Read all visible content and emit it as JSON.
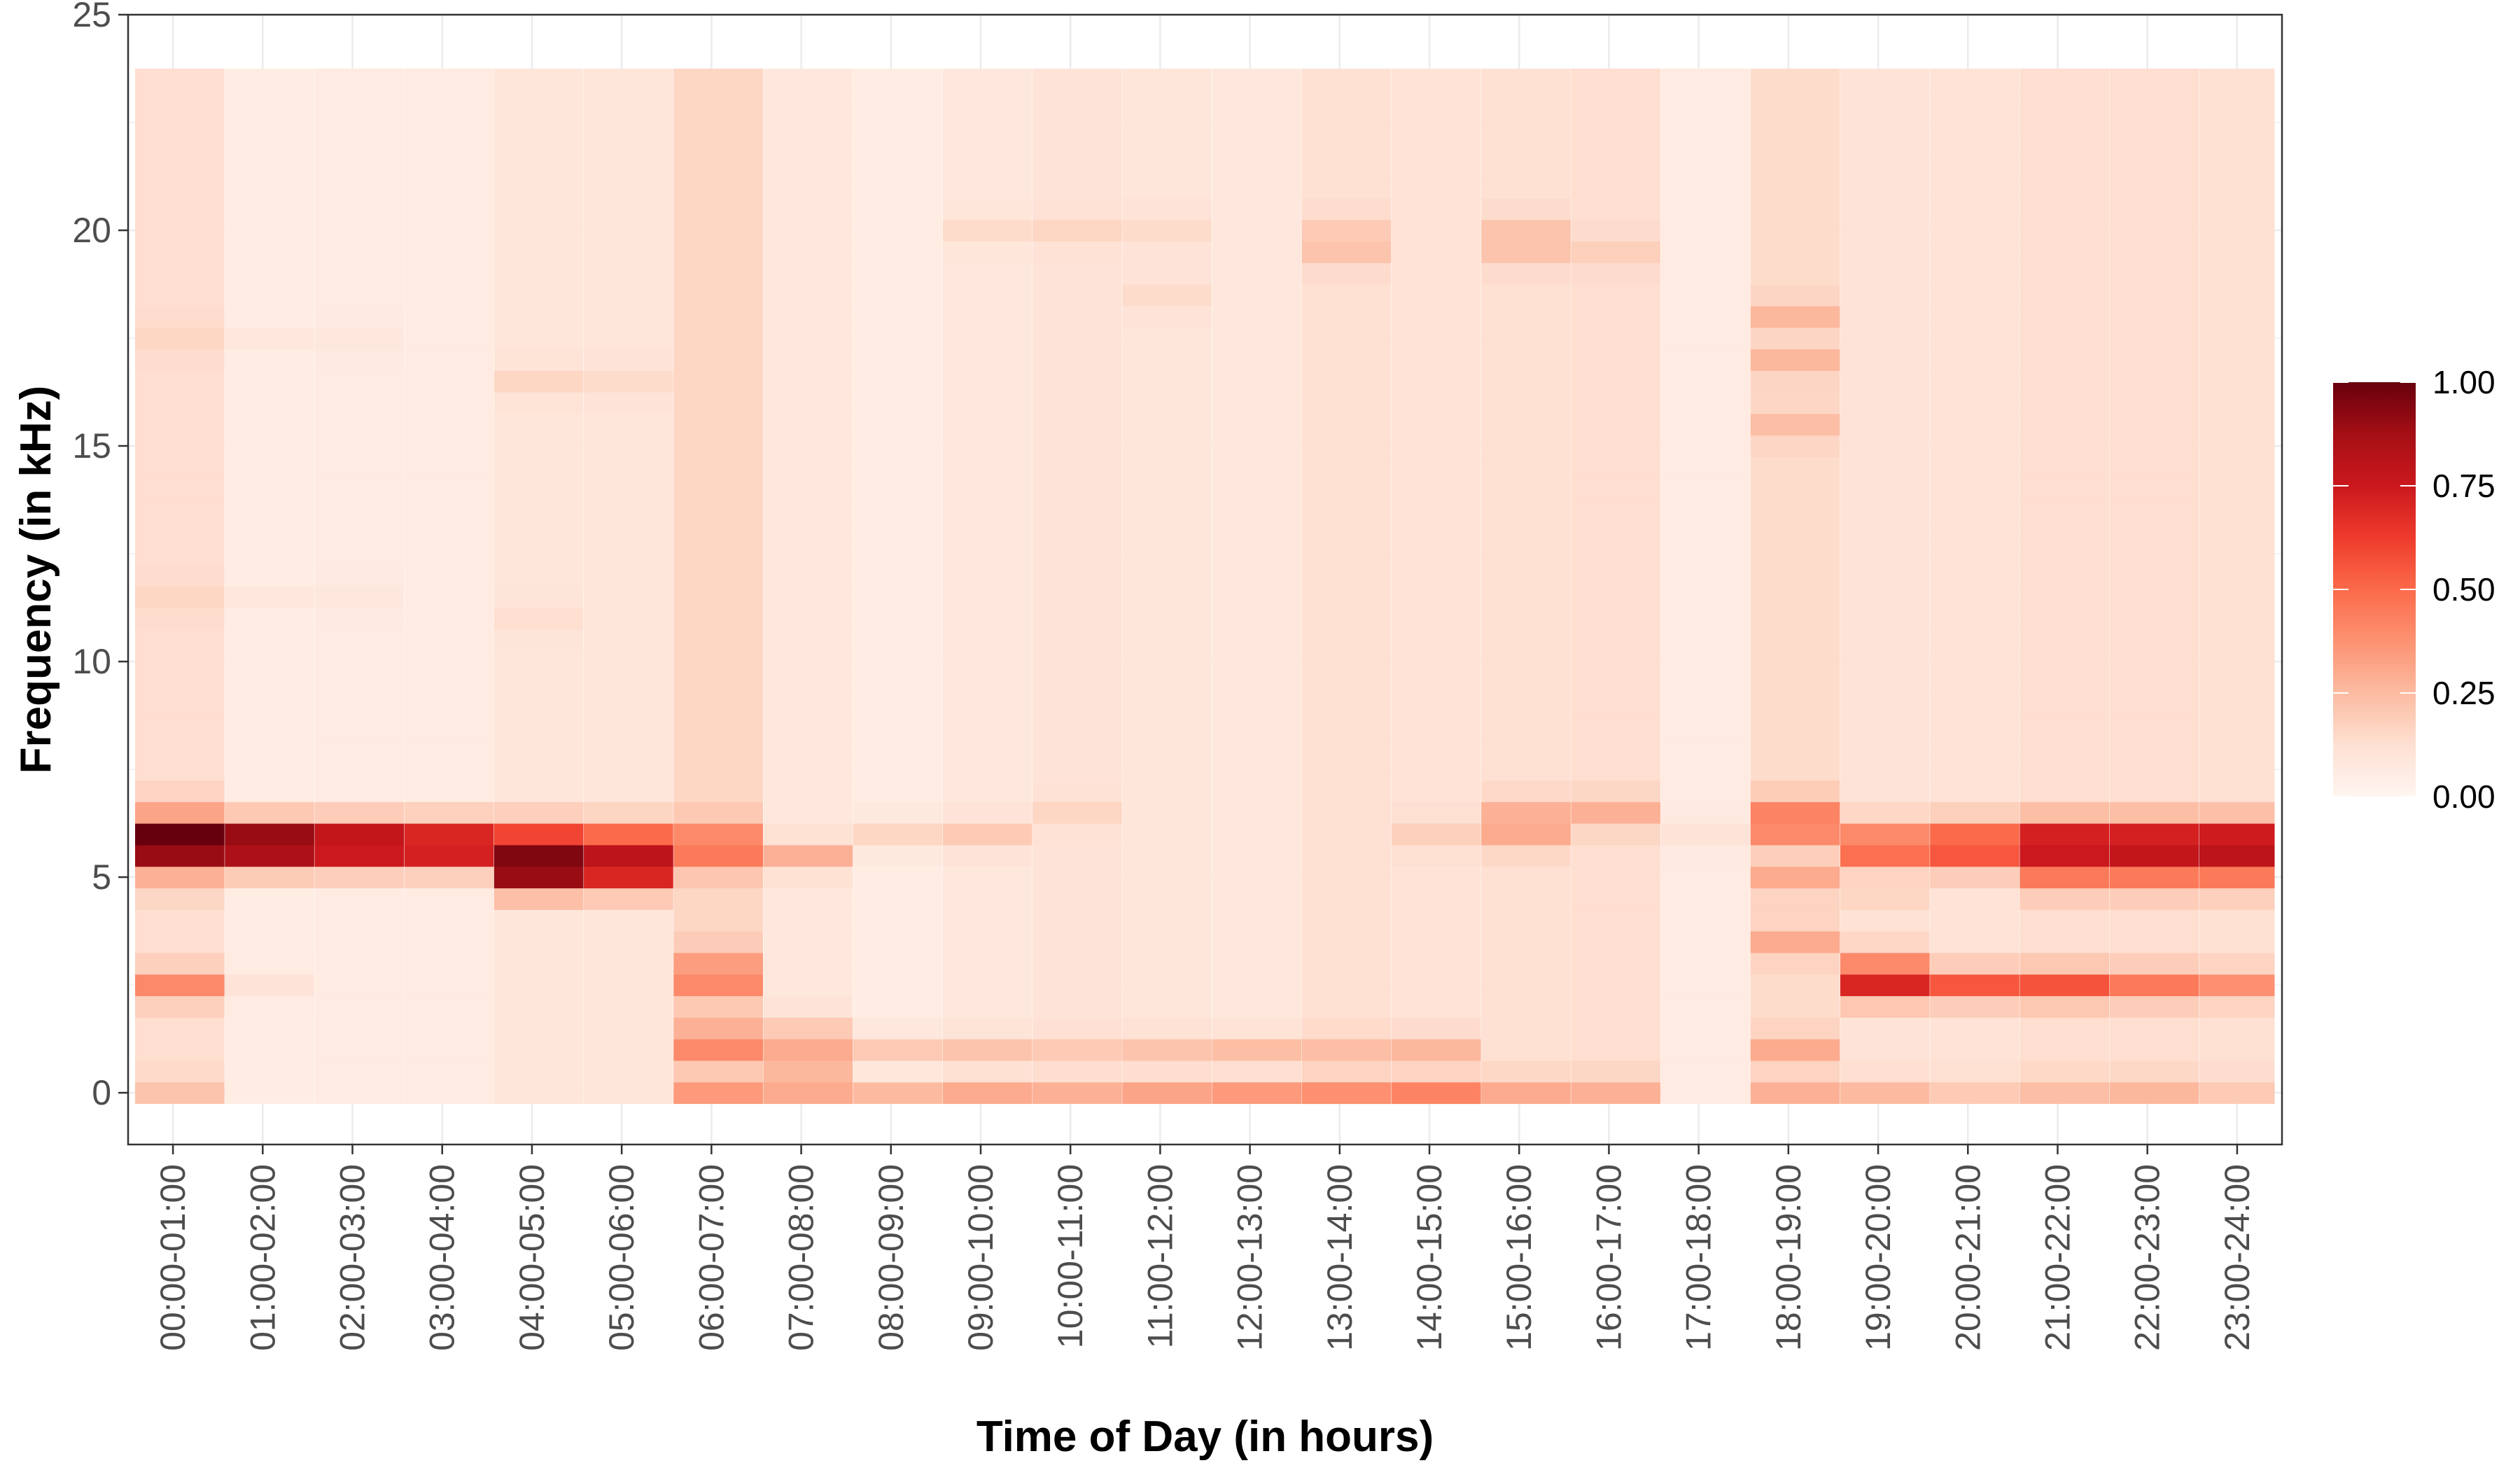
{
  "chart_data": {
    "type": "heatmap",
    "title": "",
    "xlabel": "Time of Day (in hours)",
    "ylabel": "Frequency (in kHz)",
    "x_categories": [
      "00:00-01:00",
      "01:00-02:00",
      "02:00-03:00",
      "03:00-04:00",
      "04:00-05:00",
      "05:00-06:00",
      "06:00-07:00",
      "07:00-08:00",
      "08:00-09:00",
      "09:00-10:00",
      "10:00-11:00",
      "11:00-12:00",
      "12:00-13:00",
      "13:00-14:00",
      "14:00-15:00",
      "15:00-16:00",
      "16:00-17:00",
      "17:00-18:00",
      "18:00-19:00",
      "19:00-20:00",
      "20:00-21:00",
      "21:00-22:00",
      "22:00-23:00",
      "23:00-24:00"
    ],
    "ylim": [
      -1.2,
      25
    ],
    "y_ticks": [
      0,
      5,
      10,
      15,
      20,
      25
    ],
    "y_bins": {
      "start": 0,
      "end": 24,
      "step": 0.5
    },
    "value_range": [
      0,
      1
    ],
    "legend": {
      "position": "right",
      "ticks": [
        "1.00",
        "0.75",
        "0.50",
        "0.25",
        "0.00"
      ]
    },
    "colors": [
      "#fff5f0",
      "#fee0d2",
      "#fcbba1",
      "#fc9272",
      "#fb6a4a",
      "#ef3b2c",
      "#cb181d",
      "#a50f15",
      "#67000d"
    ],
    "grid": true,
    "intensity_by_hour": [
      {
        "base": 0.13,
        "bands": [
          [
            0,
            0.22
          ],
          [
            2.5,
            0.4
          ],
          [
            5.0,
            0.28
          ],
          [
            5.5,
            0.9
          ],
          [
            6.0,
            1.0
          ],
          [
            6.5,
            0.32
          ],
          [
            11.5,
            0.16
          ],
          [
            17.5,
            0.16
          ]
        ]
      },
      {
        "base": 0.05,
        "bands": [
          [
            2.5,
            0.1
          ],
          [
            5.5,
            0.85
          ],
          [
            6.0,
            0.9
          ],
          [
            11.5,
            0.08
          ],
          [
            17.5,
            0.08
          ]
        ]
      },
      {
        "base": 0.06,
        "bands": [
          [
            5.5,
            0.75
          ],
          [
            6.0,
            0.78
          ],
          [
            11.5,
            0.08
          ],
          [
            17.5,
            0.08
          ]
        ]
      },
      {
        "base": 0.06,
        "bands": [
          [
            5.5,
            0.72
          ],
          [
            6.0,
            0.7
          ]
        ]
      },
      {
        "base": 0.09,
        "bands": [
          [
            5.0,
            0.9
          ],
          [
            5.5,
            0.95
          ],
          [
            6.0,
            0.6
          ],
          [
            11.0,
            0.13
          ],
          [
            16.5,
            0.16
          ]
        ]
      },
      {
        "base": 0.09,
        "bands": [
          [
            5.0,
            0.7
          ],
          [
            5.5,
            0.8
          ],
          [
            6.0,
            0.5
          ],
          [
            16.5,
            0.14
          ]
        ]
      },
      {
        "base": 0.16,
        "bands": [
          [
            0,
            0.35
          ],
          [
            1.0,
            0.4
          ],
          [
            1.5,
            0.28
          ],
          [
            2.5,
            0.4
          ],
          [
            3.0,
            0.34
          ],
          [
            5.5,
            0.45
          ],
          [
            6.0,
            0.4
          ]
        ]
      },
      {
        "base": 0.08,
        "bands": [
          [
            0,
            0.3
          ],
          [
            0.5,
            0.26
          ],
          [
            1.0,
            0.3
          ],
          [
            1.5,
            0.2
          ],
          [
            5.5,
            0.28
          ]
        ]
      },
      {
        "base": 0.05,
        "bands": [
          [
            0,
            0.25
          ],
          [
            1.0,
            0.2
          ],
          [
            6.0,
            0.16
          ]
        ]
      },
      {
        "base": 0.08,
        "bands": [
          [
            0,
            0.3
          ],
          [
            1.0,
            0.22
          ],
          [
            6.0,
            0.2
          ],
          [
            20.0,
            0.14
          ]
        ]
      },
      {
        "base": 0.1,
        "bands": [
          [
            0,
            0.28
          ],
          [
            1.0,
            0.2
          ],
          [
            6.5,
            0.16
          ],
          [
            20.0,
            0.16
          ]
        ]
      },
      {
        "base": 0.09,
        "bands": [
          [
            0,
            0.32
          ],
          [
            1.0,
            0.22
          ],
          [
            18.5,
            0.14
          ],
          [
            20.0,
            0.14
          ]
        ]
      },
      {
        "base": 0.08,
        "bands": [
          [
            0,
            0.35
          ],
          [
            1.0,
            0.24
          ]
        ]
      },
      {
        "base": 0.12,
        "bands": [
          [
            0,
            0.38
          ],
          [
            1.0,
            0.24
          ],
          [
            19.5,
            0.22
          ],
          [
            20.0,
            0.2
          ]
        ]
      },
      {
        "base": 0.11,
        "bands": [
          [
            0,
            0.42
          ],
          [
            1.0,
            0.26
          ],
          [
            6.0,
            0.18
          ]
        ]
      },
      {
        "base": 0.12,
        "bands": [
          [
            0,
            0.3
          ],
          [
            6.0,
            0.3
          ],
          [
            6.5,
            0.28
          ],
          [
            19.5,
            0.22
          ],
          [
            20.0,
            0.22
          ]
        ]
      },
      {
        "base": 0.13,
        "bands": [
          [
            0,
            0.28
          ],
          [
            6.5,
            0.28
          ],
          [
            19.5,
            0.18
          ]
        ]
      },
      {
        "base": 0.06,
        "bands": [
          [
            6.0,
            0.1
          ]
        ]
      },
      {
        "base": 0.14,
        "bands": [
          [
            0,
            0.28
          ],
          [
            1.0,
            0.3
          ],
          [
            3.5,
            0.3
          ],
          [
            6.0,
            0.4
          ],
          [
            6.5,
            0.42
          ],
          [
            5.0,
            0.3
          ],
          [
            15.5,
            0.24
          ],
          [
            17.0,
            0.26
          ],
          [
            18.0,
            0.26
          ]
        ]
      },
      {
        "base": 0.1,
        "bands": [
          [
            0,
            0.25
          ],
          [
            2.5,
            0.7
          ],
          [
            3.0,
            0.4
          ],
          [
            5.5,
            0.48
          ],
          [
            6.0,
            0.4
          ],
          [
            4.5,
            0.16
          ]
        ]
      },
      {
        "base": 0.11,
        "bands": [
          [
            0,
            0.2
          ],
          [
            2.5,
            0.55
          ],
          [
            5.5,
            0.55
          ],
          [
            6.0,
            0.5
          ]
        ]
      },
      {
        "base": 0.13,
        "bands": [
          [
            0,
            0.24
          ],
          [
            2.5,
            0.56
          ],
          [
            5.5,
            0.75
          ],
          [
            6.0,
            0.72
          ],
          [
            5.0,
            0.45
          ]
        ]
      },
      {
        "base": 0.13,
        "bands": [
          [
            0,
            0.26
          ],
          [
            2.5,
            0.45
          ],
          [
            5.5,
            0.78
          ],
          [
            6.0,
            0.72
          ],
          [
            5.0,
            0.45
          ]
        ]
      },
      {
        "base": 0.12,
        "bands": [
          [
            0,
            0.2
          ],
          [
            2.5,
            0.38
          ],
          [
            5.5,
            0.8
          ],
          [
            6.0,
            0.74
          ],
          [
            5.0,
            0.45
          ]
        ]
      }
    ]
  }
}
